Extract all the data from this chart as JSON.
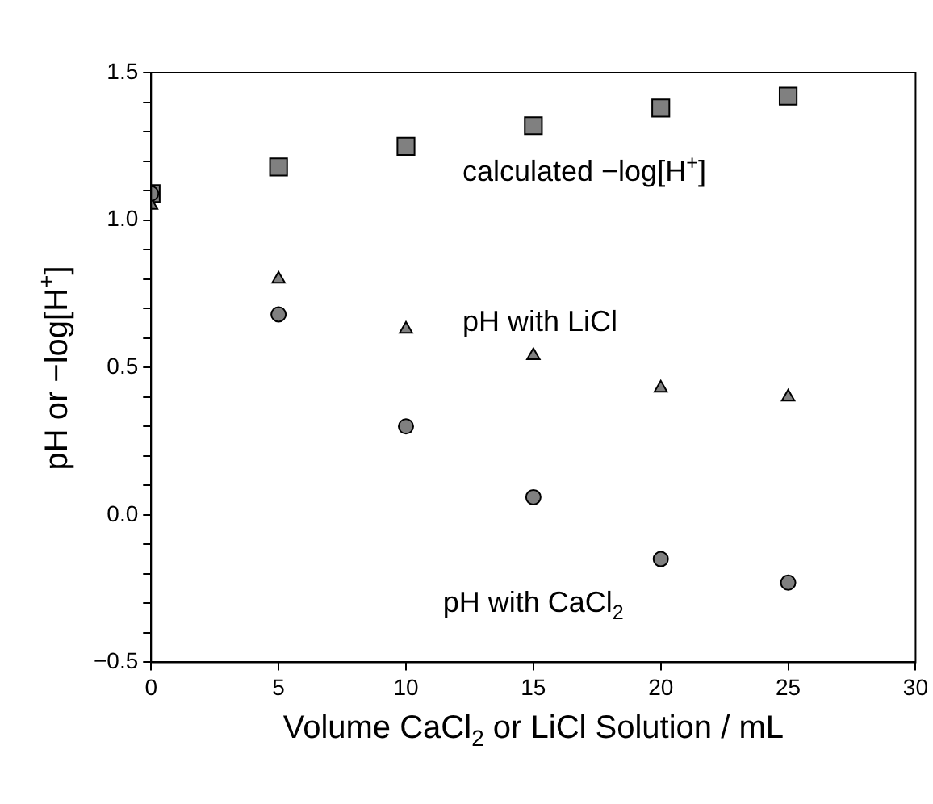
{
  "chart_data": {
    "type": "scatter",
    "xlabel": "Volume CaCl$_{2}$ or LiCl Solution / mL",
    "ylabel": "pH or −log[H$^{+}$]",
    "x": [
      0,
      5,
      10,
      15,
      20,
      25
    ],
    "series": [
      {
        "name": "calculated −log[H$^{+}$]",
        "color": "#808080",
        "marker": "square",
        "values": [
          1.09,
          1.18,
          1.25,
          1.32,
          1.38,
          1.42
        ]
      },
      {
        "name": "pH with LiCl",
        "color": "#808080",
        "marker": "triangle",
        "values": [
          1.05,
          0.8,
          0.63,
          0.54,
          0.43,
          0.4
        ]
      },
      {
        "name": "pH with CaCl$_{2}$",
        "color": "#808080",
        "marker": "circle",
        "values": [
          1.09,
          0.68,
          0.3,
          0.06,
          -0.15,
          -0.23
        ]
      }
    ],
    "xlim": [
      0,
      30
    ],
    "xticks": [
      0,
      5,
      10,
      15,
      20,
      25,
      30
    ],
    "ylim": [
      -0.5,
      1.5
    ],
    "yticks": [
      {
        "value": -0.5,
        "label": "−0.5"
      },
      {
        "value": -0.4,
        "label": null
      },
      {
        "value": -0.3,
        "label": null
      },
      {
        "value": -0.2,
        "label": null
      },
      {
        "value": -0.1,
        "label": null
      },
      {
        "value": 0,
        "label": "0.0"
      },
      {
        "value": 0.1,
        "label": null
      },
      {
        "value": 0.2,
        "label": null
      },
      {
        "value": 0.3,
        "label": null
      },
      {
        "value": 0.4,
        "label": null
      },
      {
        "value": 0.5,
        "label": "0.5"
      },
      {
        "value": 0.6,
        "label": null
      },
      {
        "value": 0.7,
        "label": null
      },
      {
        "value": 0.8,
        "label": null
      },
      {
        "value": 0.9,
        "label": null
      },
      {
        "value": 1.0,
        "label": "1.0"
      },
      {
        "value": 1.1,
        "label": null
      },
      {
        "value": 1.2,
        "label": null
      },
      {
        "value": 1.3,
        "label": null
      },
      {
        "value": 1.4,
        "label": null
      },
      {
        "value": 1.5,
        "label": "1.5"
      }
    ],
    "grid": false,
    "legend": false
  }
}
